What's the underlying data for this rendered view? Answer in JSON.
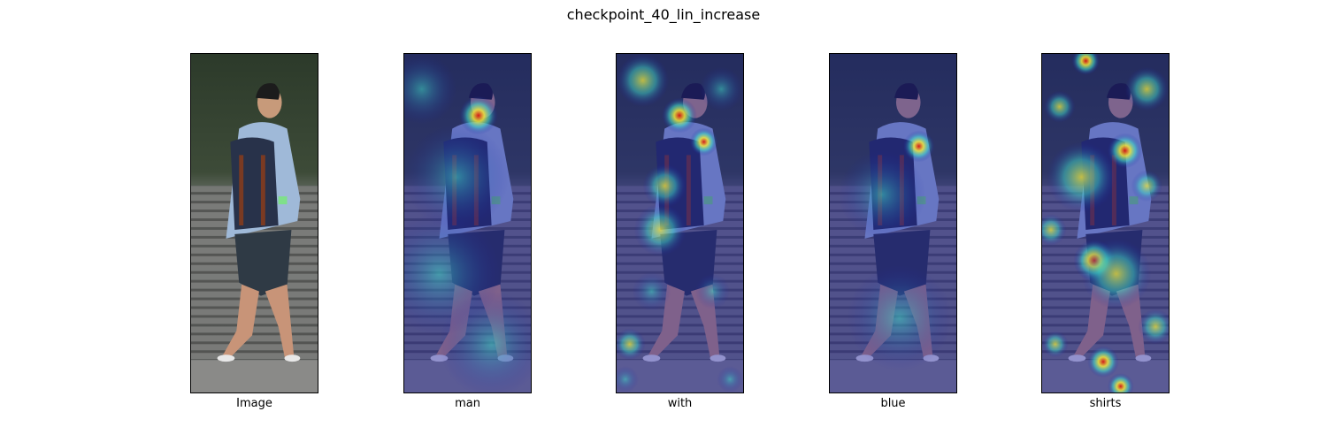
{
  "figure": {
    "title": "checkpoint_40_lin_increase"
  },
  "panels": [
    {
      "label": "Image",
      "overlay": "none"
    },
    {
      "label": "man",
      "overlay": "attention-heatmap"
    },
    {
      "label": "with",
      "overlay": "attention-heatmap"
    },
    {
      "label": "blue",
      "overlay": "attention-heatmap"
    },
    {
      "label": "shirts",
      "overlay": "attention-heatmap"
    }
  ],
  "colormap": {
    "low": "#1a1aa6",
    "mid": "#3fd6c6",
    "high_mid": "#f2e83a",
    "peak": "#d61414"
  }
}
